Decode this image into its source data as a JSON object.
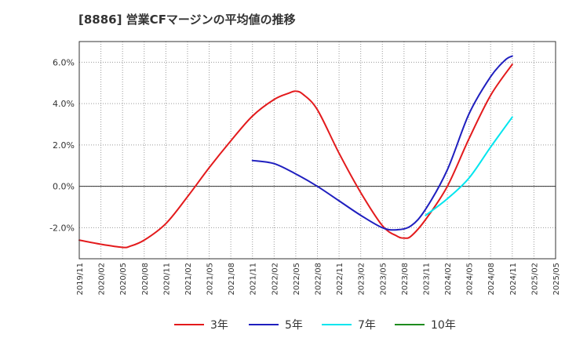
{
  "chart_data": {
    "type": "line",
    "title": "[8886]  営業CFマージンの平均値の推移",
    "xlabel": "",
    "ylabel": "",
    "x_ticks": [
      "2019/11",
      "2020/02",
      "2020/05",
      "2020/08",
      "2020/11",
      "2021/02",
      "2021/05",
      "2021/08",
      "2021/11",
      "2022/02",
      "2022/05",
      "2022/08",
      "2022/11",
      "2023/02",
      "2023/05",
      "2023/08",
      "2023/11",
      "2024/02",
      "2024/05",
      "2024/08",
      "2024/11",
      "2025/02",
      "2025/05"
    ],
    "y_ticks": [
      "-2.0%",
      "0.0%",
      "2.0%",
      "4.0%",
      "6.0%"
    ],
    "y_tick_values": [
      -2,
      0,
      2,
      4,
      6
    ],
    "ylim": [
      -3.5,
      7.0
    ],
    "grid": true,
    "legend_position": "bottom",
    "series": [
      {
        "name": "3年",
        "color": "#e31a1c",
        "x": [
          "2019/11",
          "2020/02",
          "2020/05",
          "2020/06",
          "2020/08",
          "2020/11",
          "2021/02",
          "2021/05",
          "2021/08",
          "2021/11",
          "2022/02",
          "2022/04",
          "2022/05",
          "2022/06",
          "2022/08",
          "2022/11",
          "2023/02",
          "2023/05",
          "2023/07",
          "2023/08",
          "2023/09",
          "2023/11",
          "2024/02",
          "2024/05",
          "2024/08",
          "2024/11"
        ],
        "values": [
          -2.6,
          -2.8,
          -2.95,
          -2.9,
          -2.6,
          -1.8,
          -0.5,
          0.9,
          2.2,
          3.4,
          4.2,
          4.5,
          4.6,
          4.45,
          3.7,
          1.6,
          -0.3,
          -1.9,
          -2.4,
          -2.5,
          -2.4,
          -1.6,
          0.0,
          2.3,
          4.4,
          5.9
        ]
      },
      {
        "name": "5年",
        "color": "#1f1fbf",
        "x": [
          "2021/11",
          "2022/02",
          "2022/05",
          "2022/08",
          "2022/11",
          "2023/02",
          "2023/05",
          "2023/07",
          "2023/09",
          "2023/11",
          "2024/02",
          "2024/05",
          "2024/08",
          "2024/10",
          "2024/11"
        ],
        "values": [
          1.25,
          1.1,
          0.6,
          0.0,
          -0.7,
          -1.4,
          -2.0,
          -2.1,
          -1.9,
          -1.1,
          0.8,
          3.5,
          5.3,
          6.1,
          6.3
        ]
      },
      {
        "name": "7年",
        "color": "#00e5ee",
        "x": [
          "2023/11",
          "2024/02",
          "2024/05",
          "2024/08",
          "2024/11"
        ],
        "values": [
          -1.4,
          -0.6,
          0.4,
          1.9,
          3.35
        ]
      },
      {
        "name": "10年",
        "color": "#1e8c1e",
        "x": [],
        "values": []
      }
    ]
  }
}
